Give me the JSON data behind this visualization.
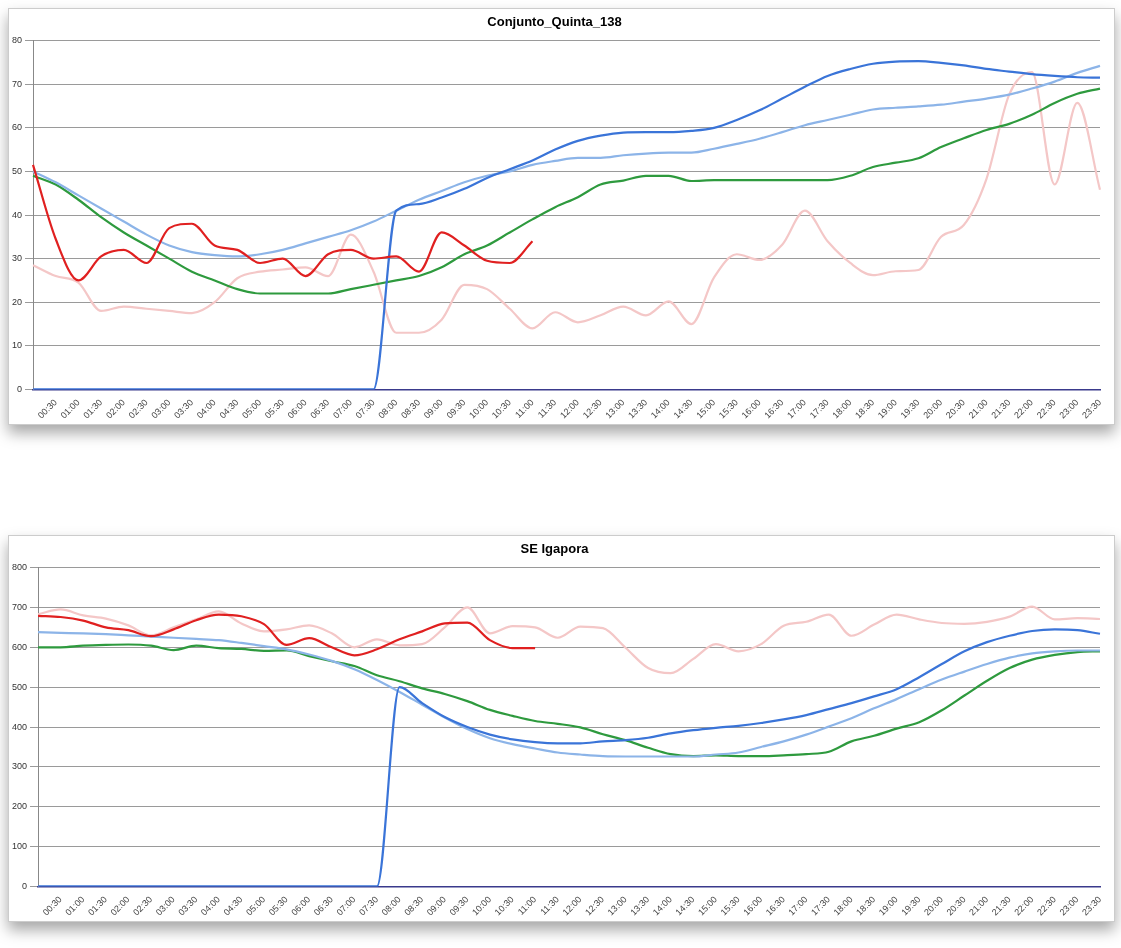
{
  "chart_data": [
    {
      "type": "line",
      "title": "Conjunto_Quinta_138",
      "categories": [
        null,
        "00:30",
        "01:00",
        "01:30",
        "02:00",
        "02:30",
        "03:00",
        "03:30",
        "04:00",
        "04:30",
        "05:00",
        "05:30",
        "06:00",
        "06:30",
        "07:00",
        "07:30",
        "08:00",
        "08:30",
        "09:00",
        "09:30",
        "10:00",
        "10:30",
        "11:00",
        "11:30",
        "12:00",
        "12:30",
        "13:00",
        "13:30",
        "14:00",
        "14:30",
        "15:00",
        "15:30",
        "16:00",
        "16:30",
        "17:00",
        "17:30",
        "18:00",
        "18:30",
        "19:00",
        "19:30",
        "20:00",
        "20:30",
        "21:00",
        "21:30",
        "22:00",
        "22:30",
        "23:00",
        "23:30"
      ],
      "ylim": [
        0,
        80
      ],
      "yticks": [
        0,
        10,
        20,
        30,
        40,
        50,
        60,
        70,
        80
      ],
      "grid": "y",
      "legend": false,
      "marker": "none",
      "series": [
        {
          "color": "#f4c7c7",
          "values": [
            28.5,
            26,
            24.5,
            18,
            19,
            18.5,
            18,
            17.5,
            20,
            25.5,
            27,
            27.5,
            28,
            26,
            35.5,
            27,
            13,
            13,
            16,
            24,
            23,
            18.5,
            14,
            17.7,
            15.4,
            17,
            19,
            17,
            20.2,
            15,
            25.7,
            31,
            29.7,
            33.2,
            41,
            34,
            29,
            26.2,
            27.1,
            27.4,
            35,
            37.7,
            48.3,
            67.6,
            72.8,
            47,
            65.7,
            45.8
          ]
        },
        {
          "color": "#2e9a3e",
          "values": [
            49,
            47,
            43.5,
            39.5,
            36,
            33,
            30,
            27,
            25,
            23,
            22,
            22,
            22,
            22,
            23,
            24,
            25,
            26,
            28,
            31,
            33,
            36,
            39,
            41.8,
            44.1,
            47,
            47.9,
            49,
            49,
            47.8,
            48,
            48,
            48,
            48,
            48,
            48,
            49,
            51,
            52,
            53,
            55.6,
            57.6,
            59.5,
            60.9,
            63,
            65.7,
            67.8,
            69
          ]
        },
        {
          "color": "#8cb4e8",
          "values": [
            50,
            47.5,
            44.5,
            41.5,
            38.5,
            35.5,
            33,
            31.5,
            30.8,
            30.5,
            31,
            32,
            33.5,
            35,
            36.5,
            38.5,
            41,
            43.5,
            45.5,
            47.5,
            49,
            50,
            51.5,
            52.4,
            53.1,
            53.1,
            53.7,
            54.1,
            54.3,
            54.3,
            55.2,
            56.3,
            57.5,
            59,
            60.6,
            61.8,
            63,
            64.2,
            64.6,
            64.9,
            65.3,
            66,
            66.7,
            67.6,
            69,
            70.6,
            72.6,
            74.2
          ]
        },
        {
          "color": "#3a74d8",
          "values": [
            0,
            0,
            0,
            0,
            0,
            0,
            0,
            0,
            0,
            0,
            0,
            0,
            0,
            0,
            0,
            0,
            41,
            42.5,
            44,
            46,
            48.5,
            50.5,
            52.5,
            55,
            57,
            58.2,
            58.9,
            59,
            59,
            59.3,
            60,
            61.8,
            64,
            66.7,
            69.4,
            71.9,
            73.5,
            74.7,
            75.2,
            75.3,
            74.9,
            74.3,
            73.5,
            72.9,
            72.3,
            71.9,
            71.6,
            71.5
          ]
        },
        {
          "color": "#e02020",
          "values": [
            51.5,
            34.5,
            25,
            30.5,
            32,
            29,
            37,
            38,
            33,
            32,
            29,
            30,
            26,
            31,
            32,
            30,
            30.5,
            27,
            36,
            33,
            29.5,
            29,
            34,
            null,
            null,
            null,
            null,
            null,
            null,
            null,
            null,
            null,
            null,
            null,
            null,
            null,
            null,
            null,
            null,
            null,
            null,
            null,
            null,
            null,
            null,
            null,
            null,
            null
          ]
        }
      ]
    },
    {
      "type": "line",
      "title": "SE Igapora",
      "categories": [
        null,
        "00:30",
        "01:00",
        "01:30",
        "02:00",
        "02:30",
        "03:00",
        "03:30",
        "04:00",
        "04:30",
        "05:00",
        "05:30",
        "06:00",
        "06:30",
        "07:00",
        "07:30",
        "08:00",
        "08:30",
        "09:00",
        "09:30",
        "10:00",
        "10:30",
        "11:00",
        "11:30",
        "12:00",
        "12:30",
        "13:00",
        "13:30",
        "14:00",
        "14:30",
        "15:00",
        "15:30",
        "16:00",
        "16:30",
        "17:00",
        "17:30",
        "18:00",
        "18:30",
        "19:00",
        "19:30",
        "20:00",
        "20:30",
        "21:00",
        "21:30",
        "22:00",
        "22:30",
        "23:00",
        "23:30"
      ],
      "ylim": [
        0,
        800
      ],
      "yticks": [
        0,
        100,
        200,
        300,
        400,
        500,
        600,
        700,
        800
      ],
      "grid": "y",
      "legend": false,
      "marker": "none",
      "series": [
        {
          "color": "#f4c7c7",
          "values": [
            683,
            695,
            680,
            672,
            655,
            630,
            650,
            670,
            690,
            660,
            640,
            645,
            655,
            635,
            600,
            620,
            605,
            608,
            650,
            700,
            635,
            653,
            650,
            624,
            652,
            648,
            599,
            548,
            535,
            571,
            608,
            590,
            608,
            654,
            664,
            682,
            629,
            657,
            682,
            670,
            661,
            659,
            664,
            677,
            702,
            670,
            673,
            671
          ]
        },
        {
          "color": "#2e9a3e",
          "values": [
            600,
            600,
            604,
            606,
            607,
            604,
            593,
            604,
            598,
            596,
            591,
            592,
            578,
            565,
            553,
            530,
            515,
            497,
            483,
            465,
            443,
            428,
            415,
            408,
            399,
            382,
            367,
            348,
            332,
            327,
            329,
            327,
            327,
            329,
            332,
            338,
            364,
            378,
            396,
            412,
            442,
            479,
            516,
            548,
            569,
            581,
            588,
            590
          ]
        },
        {
          "color": "#8cb4e8",
          "values": [
            638,
            636,
            635,
            633,
            630,
            627,
            624,
            621,
            618,
            611,
            603,
            595,
            582,
            566,
            545,
            518,
            488,
            456,
            424,
            395,
            372,
            357,
            346,
            336,
            331,
            327,
            326,
            326,
            326,
            326,
            331,
            336,
            350,
            364,
            381,
            401,
            422,
            447,
            470,
            495,
            519,
            539,
            558,
            574,
            585,
            590,
            592,
            592
          ]
        },
        {
          "color": "#3a74d8",
          "values": [
            0,
            0,
            0,
            0,
            0,
            0,
            0,
            0,
            0,
            0,
            0,
            0,
            0,
            0,
            0,
            0,
            500,
            460,
            425,
            400,
            381,
            369,
            362,
            359,
            359,
            364,
            367,
            373,
            384,
            392,
            398,
            403,
            410,
            419,
            430,
            445,
            460,
            477,
            495,
            525,
            558,
            590,
            613,
            629,
            641,
            645,
            643,
            634
          ]
        },
        {
          "color": "#e02020",
          "values": [
            679,
            676,
            667,
            650,
            643,
            628,
            645,
            668,
            682,
            678,
            658,
            606,
            623,
            600,
            580,
            595,
            620,
            640,
            660,
            662,
            618,
            598,
            598,
            null,
            null,
            null,
            null,
            null,
            null,
            null,
            null,
            null,
            null,
            null,
            null,
            null,
            null,
            null,
            null,
            null,
            null,
            null,
            null,
            null,
            null,
            null,
            null,
            null
          ]
        }
      ]
    }
  ]
}
